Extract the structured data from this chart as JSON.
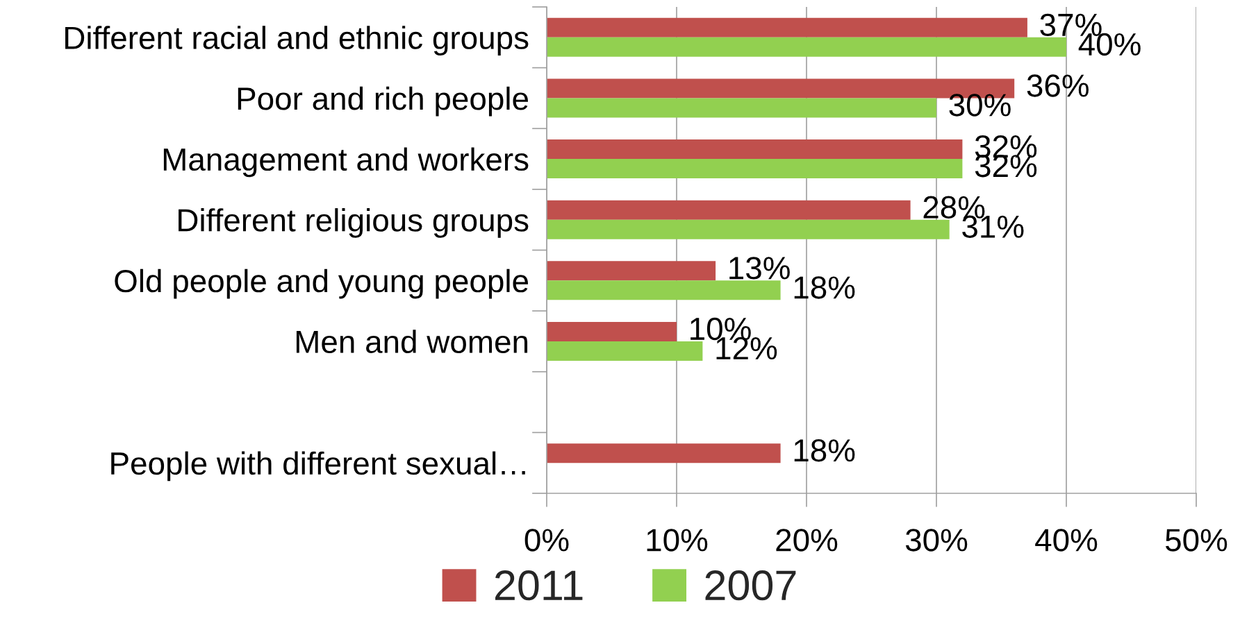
{
  "chart_data": {
    "type": "bar",
    "orientation": "horizontal",
    "categories": [
      "Different racial and ethnic groups",
      "Poor and rich people",
      "Management and workers",
      "Different religious groups",
      "Old people and young people",
      "Men and women",
      null,
      "People with different sexual…"
    ],
    "series": [
      {
        "name": "2011",
        "color": "#c0504d",
        "values": [
          37,
          36,
          32,
          28,
          13,
          10,
          null,
          18
        ],
        "value_labels": [
          "37%",
          "36%",
          "32%",
          "28%",
          "13%",
          "10%",
          null,
          "18%"
        ]
      },
      {
        "name": "2007",
        "color": "#92d050",
        "values": [
          40,
          30,
          32,
          31,
          18,
          12,
          null,
          null
        ],
        "value_labels": [
          "40%",
          "30%",
          "32%",
          "31%",
          "18%",
          "12%",
          null,
          null
        ]
      }
    ],
    "xlim": [
      0,
      50
    ],
    "xticks": [
      {
        "value": 0,
        "label": "0%"
      },
      {
        "value": 10,
        "label": "10%"
      },
      {
        "value": 20,
        "label": "20%"
      },
      {
        "value": 30,
        "label": "30%"
      },
      {
        "value": 40,
        "label": "40%"
      },
      {
        "value": 50,
        "label": "50%"
      }
    ],
    "grid": "x",
    "legend": "bottom"
  }
}
